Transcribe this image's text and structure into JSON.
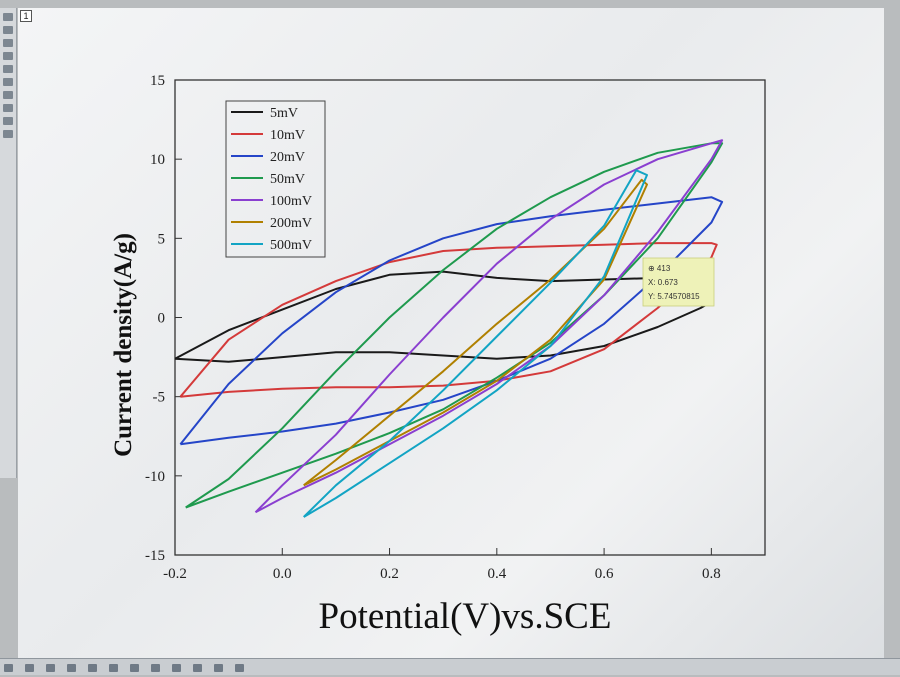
{
  "window": {
    "marker": "1"
  },
  "chart_data": {
    "type": "line",
    "title": "",
    "xlabel": "Potential(V)vs.SCE",
    "ylabel": "Current density(A/g)",
    "xlim": [
      -0.2,
      0.9
    ],
    "ylim": [
      -15,
      15
    ],
    "xticks": [
      "-0.2",
      "0.0",
      "0.2",
      "0.4",
      "0.6",
      "0.8"
    ],
    "xtick_values": [
      -0.2,
      0.0,
      0.2,
      0.4,
      0.6,
      0.8
    ],
    "yticks": [
      "15",
      "10",
      "5",
      "0",
      "-5",
      "-10",
      "-15"
    ],
    "ytick_values": [
      15,
      10,
      5,
      0,
      -5,
      -10,
      -15
    ],
    "legend_position": "top-left",
    "grid": false,
    "series": [
      {
        "name": "5mV",
        "color": "#1a1a1a",
        "points": [
          [
            -0.2,
            -2.6
          ],
          [
            -0.1,
            -2.8
          ],
          [
            0.0,
            -2.5
          ],
          [
            0.1,
            -2.2
          ],
          [
            0.2,
            -2.2
          ],
          [
            0.3,
            -2.4
          ],
          [
            0.4,
            -2.6
          ],
          [
            0.5,
            -2.4
          ],
          [
            0.6,
            -1.8
          ],
          [
            0.7,
            -0.6
          ],
          [
            0.78,
            0.6
          ],
          [
            0.8,
            1.0
          ],
          [
            0.76,
            2.3
          ],
          [
            0.7,
            2.5
          ],
          [
            0.6,
            2.4
          ],
          [
            0.5,
            2.3
          ],
          [
            0.4,
            2.5
          ],
          [
            0.3,
            2.9
          ],
          [
            0.2,
            2.7
          ],
          [
            0.1,
            1.8
          ],
          [
            0.0,
            0.5
          ],
          [
            -0.1,
            -0.8
          ],
          [
            -0.2,
            -2.6
          ]
        ]
      },
      {
        "name": "10mV",
        "color": "#d43a3a",
        "points": [
          [
            -0.19,
            -5.0
          ],
          [
            -0.1,
            -4.7
          ],
          [
            0.0,
            -4.5
          ],
          [
            0.1,
            -4.4
          ],
          [
            0.2,
            -4.4
          ],
          [
            0.3,
            -4.3
          ],
          [
            0.4,
            -4.0
          ],
          [
            0.5,
            -3.4
          ],
          [
            0.6,
            -2.0
          ],
          [
            0.7,
            0.6
          ],
          [
            0.8,
            3.8
          ],
          [
            0.81,
            4.6
          ],
          [
            0.8,
            4.7
          ],
          [
            0.7,
            4.7
          ],
          [
            0.6,
            4.6
          ],
          [
            0.5,
            4.5
          ],
          [
            0.4,
            4.4
          ],
          [
            0.3,
            4.2
          ],
          [
            0.2,
            3.5
          ],
          [
            0.1,
            2.3
          ],
          [
            0.0,
            0.8
          ],
          [
            -0.1,
            -1.4
          ],
          [
            -0.19,
            -5.0
          ]
        ]
      },
      {
        "name": "20mV",
        "color": "#2545c8",
        "points": [
          [
            -0.19,
            -8.0
          ],
          [
            -0.1,
            -7.6
          ],
          [
            0.0,
            -7.2
          ],
          [
            0.1,
            -6.7
          ],
          [
            0.2,
            -6.0
          ],
          [
            0.3,
            -5.2
          ],
          [
            0.4,
            -4.0
          ],
          [
            0.5,
            -2.6
          ],
          [
            0.6,
            -0.4
          ],
          [
            0.7,
            2.6
          ],
          [
            0.8,
            6.0
          ],
          [
            0.82,
            7.3
          ],
          [
            0.8,
            7.6
          ],
          [
            0.7,
            7.2
          ],
          [
            0.6,
            6.8
          ],
          [
            0.5,
            6.4
          ],
          [
            0.4,
            5.9
          ],
          [
            0.3,
            5.0
          ],
          [
            0.2,
            3.6
          ],
          [
            0.1,
            1.6
          ],
          [
            0.0,
            -1.0
          ],
          [
            -0.1,
            -4.2
          ],
          [
            -0.19,
            -8.0
          ]
        ]
      },
      {
        "name": "50mV",
        "color": "#1f9a4e",
        "points": [
          [
            -0.18,
            -12.0
          ],
          [
            -0.1,
            -11.0
          ],
          [
            0.0,
            -9.8
          ],
          [
            0.1,
            -8.6
          ],
          [
            0.2,
            -7.3
          ],
          [
            0.3,
            -5.8
          ],
          [
            0.4,
            -3.8
          ],
          [
            0.5,
            -1.6
          ],
          [
            0.6,
            1.4
          ],
          [
            0.7,
            5.0
          ],
          [
            0.8,
            9.8
          ],
          [
            0.82,
            11.0
          ],
          [
            0.8,
            11.0
          ],
          [
            0.7,
            10.4
          ],
          [
            0.6,
            9.2
          ],
          [
            0.5,
            7.6
          ],
          [
            0.4,
            5.6
          ],
          [
            0.3,
            3.0
          ],
          [
            0.2,
            0.0
          ],
          [
            0.1,
            -3.4
          ],
          [
            0.0,
            -7.0
          ],
          [
            -0.1,
            -10.2
          ],
          [
            -0.18,
            -12.0
          ]
        ]
      },
      {
        "name": "100mV",
        "color": "#8a3fd0",
        "points": [
          [
            -0.05,
            -12.3
          ],
          [
            0.0,
            -11.4
          ],
          [
            0.1,
            -9.8
          ],
          [
            0.2,
            -8.0
          ],
          [
            0.3,
            -6.2
          ],
          [
            0.4,
            -4.2
          ],
          [
            0.5,
            -1.8
          ],
          [
            0.6,
            1.4
          ],
          [
            0.7,
            5.4
          ],
          [
            0.8,
            10.0
          ],
          [
            0.82,
            11.2
          ],
          [
            0.8,
            11.0
          ],
          [
            0.7,
            10.0
          ],
          [
            0.6,
            8.4
          ],
          [
            0.5,
            6.2
          ],
          [
            0.4,
            3.4
          ],
          [
            0.3,
            0.0
          ],
          [
            0.2,
            -3.6
          ],
          [
            0.1,
            -7.4
          ],
          [
            0.0,
            -10.6
          ],
          [
            -0.05,
            -12.3
          ]
        ]
      },
      {
        "name": "200mV",
        "color": "#b08000",
        "points": [
          [
            0.04,
            -10.6
          ],
          [
            0.1,
            -9.6
          ],
          [
            0.2,
            -7.8
          ],
          [
            0.3,
            -6.0
          ],
          [
            0.4,
            -4.0
          ],
          [
            0.5,
            -1.4
          ],
          [
            0.6,
            2.4
          ],
          [
            0.68,
            8.4
          ],
          [
            0.67,
            8.7
          ],
          [
            0.6,
            5.6
          ],
          [
            0.5,
            2.4
          ],
          [
            0.4,
            -0.4
          ],
          [
            0.3,
            -3.4
          ],
          [
            0.2,
            -6.2
          ],
          [
            0.1,
            -9.0
          ],
          [
            0.04,
            -10.6
          ]
        ]
      },
      {
        "name": "500mV",
        "color": "#12a4c4",
        "points": [
          [
            0.04,
            -12.6
          ],
          [
            0.1,
            -11.4
          ],
          [
            0.2,
            -9.2
          ],
          [
            0.3,
            -7.0
          ],
          [
            0.4,
            -4.6
          ],
          [
            0.5,
            -1.8
          ],
          [
            0.6,
            2.6
          ],
          [
            0.68,
            9.0
          ],
          [
            0.66,
            9.3
          ],
          [
            0.6,
            5.8
          ],
          [
            0.5,
            2.2
          ],
          [
            0.4,
            -1.2
          ],
          [
            0.3,
            -4.6
          ],
          [
            0.2,
            -7.8
          ],
          [
            0.1,
            -10.6
          ],
          [
            0.04,
            -12.6
          ]
        ]
      }
    ]
  },
  "tooltip": {
    "lines": [
      "⊕ 413",
      "X: 0.673",
      "Y: 5.74570815"
    ]
  }
}
